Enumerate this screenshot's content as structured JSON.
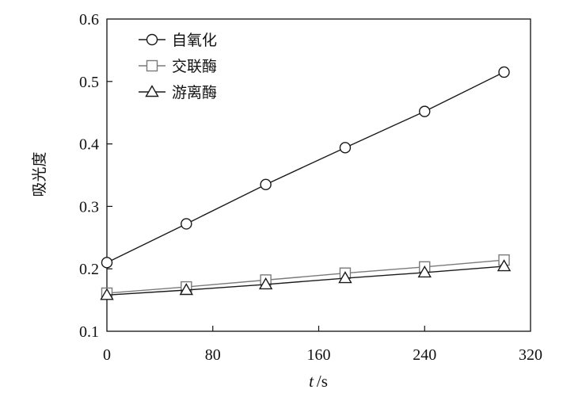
{
  "chart_data": {
    "type": "line",
    "xlabel_italic": "t",
    "xlabel_unit": "/s",
    "ylabel": "吸光度",
    "xlim": [
      0,
      320
    ],
    "ylim": [
      0.1,
      0.6
    ],
    "x_ticks": [
      0,
      80,
      160,
      240,
      320
    ],
    "y_ticks": [
      0.1,
      0.2,
      0.3,
      0.4,
      0.5,
      0.6
    ],
    "grid": false,
    "legend_position": "top-left",
    "series": [
      {
        "name": "自氧化",
        "marker": "circle",
        "color": "#1a1a1a",
        "x": [
          0,
          60,
          120,
          180,
          240,
          300
        ],
        "y": [
          0.21,
          0.272,
          0.335,
          0.394,
          0.452,
          0.515
        ]
      },
      {
        "name": "交联酶",
        "marker": "square",
        "color": "#7a7a7a",
        "x": [
          0,
          60,
          120,
          180,
          240,
          300
        ],
        "y": [
          0.161,
          0.171,
          0.182,
          0.193,
          0.203,
          0.214
        ]
      },
      {
        "name": "游离酶",
        "marker": "triangle",
        "color": "#1a1a1a",
        "x": [
          0,
          60,
          120,
          180,
          240,
          300
        ],
        "y": [
          0.158,
          0.166,
          0.175,
          0.185,
          0.194,
          0.204
        ]
      }
    ]
  }
}
